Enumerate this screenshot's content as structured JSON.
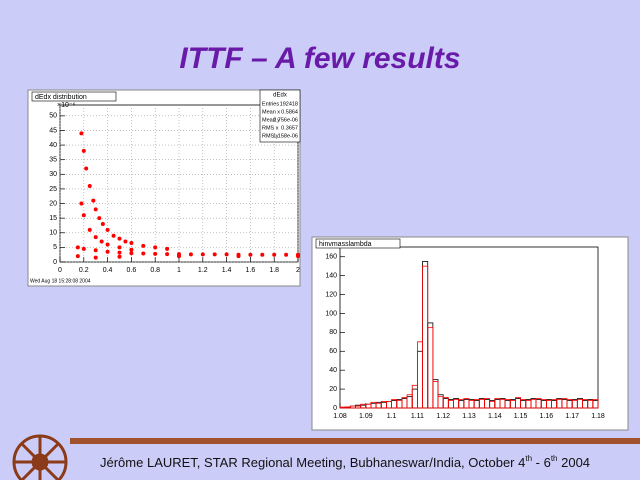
{
  "slide_title": "ITTF – A few results",
  "footer": {
    "text": "Jérôme LAURET, STAR Regional Meeting, Bubhaneswar/India, October 4",
    "sup1": "th",
    "mid": " - 6",
    "sup2": "th",
    "end": " 2004"
  },
  "chart_data": [
    {
      "type": "scatter",
      "title": "dEdx distribution",
      "y_multiplier": "×10⁻⁶",
      "timestamp": "Wed Aug 18 15:28:08 2004",
      "stats_title": "dEdx",
      "stats": [
        {
          "label": "Entries",
          "value": "192418"
        },
        {
          "label": "Mean x",
          "value": "0.5864"
        },
        {
          "label": "Mean y",
          "value": "2.756e-06"
        },
        {
          "label": "RMS x",
          "value": "0.3657"
        },
        {
          "label": "RMS y",
          "value": "1.158e-06"
        }
      ],
      "color": "#ff0000",
      "grid": true,
      "xlim": [
        0,
        2
      ],
      "xticks": [
        0,
        0.2,
        0.4,
        0.6,
        0.8,
        1,
        1.2,
        1.4,
        1.6,
        1.8,
        2
      ],
      "ylim": [
        0,
        52
      ],
      "yticks": [
        0,
        5,
        10,
        15,
        20,
        25,
        30,
        35,
        40,
        45,
        50
      ],
      "x": [
        0.18,
        0.2,
        0.22,
        0.25,
        0.28,
        0.3,
        0.33,
        0.36,
        0.4,
        0.45,
        0.5,
        0.55,
        0.6,
        0.7,
        0.8,
        0.9,
        0.18,
        0.2,
        0.25,
        0.3,
        0.35,
        0.4,
        0.5,
        0.6,
        0.15,
        0.2,
        0.3,
        0.4,
        0.5,
        0.6,
        0.7,
        0.8,
        0.9,
        1,
        1.1,
        1.2,
        1.3,
        1.4,
        1.5,
        1.6,
        1.7,
        1.8,
        1.9,
        2,
        0.15,
        0.3,
        0.5,
        1,
        1.5,
        2
      ],
      "values": [
        44,
        38,
        32,
        26,
        21,
        18,
        15,
        13,
        11,
        9,
        8,
        7,
        6.5,
        5.5,
        5,
        4.5,
        20,
        16,
        11,
        8.5,
        7,
        6,
        5,
        4.2,
        5,
        4.5,
        4,
        3.5,
        3.2,
        3,
        2.9,
        2.8,
        2.7,
        2.7,
        2.6,
        2.6,
        2.6,
        2.6,
        2.5,
        2.5,
        2.5,
        2.5,
        2.5,
        2.5,
        2,
        1.5,
        1.8,
        2,
        2,
        2
      ]
    },
    {
      "type": "histogram",
      "title": "hinvmasslambda",
      "xlim": [
        1.08,
        1.18
      ],
      "xticks": [
        1.08,
        1.09,
        1.1,
        1.11,
        1.12,
        1.13,
        1.14,
        1.15,
        1.16,
        1.17,
        1.18
      ],
      "ylim": [
        0,
        165
      ],
      "yticks": [
        0,
        20,
        40,
        60,
        80,
        100,
        120,
        140,
        160
      ],
      "bins": [
        1.08,
        1.082,
        1.084,
        1.086,
        1.088,
        1.09,
        1.092,
        1.094,
        1.096,
        1.098,
        1.1,
        1.102,
        1.104,
        1.106,
        1.108,
        1.11,
        1.112,
        1.114,
        1.116,
        1.118,
        1.12,
        1.122,
        1.124,
        1.126,
        1.128,
        1.13,
        1.132,
        1.134,
        1.136,
        1.138,
        1.14,
        1.142,
        1.144,
        1.146,
        1.148,
        1.15,
        1.152,
        1.154,
        1.156,
        1.158,
        1.16,
        1.162,
        1.164,
        1.166,
        1.168,
        1.17,
        1.172,
        1.174,
        1.176,
        1.178,
        1.18
      ],
      "series": [
        {
          "color": "#000000",
          "values": [
            0,
            1,
            2,
            3,
            3,
            4,
            5,
            6,
            6,
            7,
            8,
            9,
            10,
            12,
            20,
            60,
            155,
            90,
            30,
            14,
            10,
            9,
            10,
            8,
            9,
            9,
            8,
            10,
            9,
            8,
            9,
            10,
            8,
            9,
            10,
            8,
            9,
            10,
            9,
            8,
            9,
            8,
            10,
            9,
            8,
            9,
            10,
            8,
            9,
            8
          ]
        },
        {
          "color": "#ff0000",
          "values": [
            1,
            1,
            2,
            2,
            4,
            4,
            6,
            5,
            7,
            7,
            9,
            8,
            11,
            14,
            24,
            70,
            150,
            85,
            28,
            12,
            11,
            8,
            9,
            9,
            10,
            8,
            9,
            9,
            10,
            7,
            10,
            9,
            9,
            8,
            11,
            9,
            8,
            9,
            10,
            9,
            8,
            9,
            9,
            10,
            9,
            8,
            9,
            9,
            8,
            9
          ]
        }
      ]
    }
  ]
}
